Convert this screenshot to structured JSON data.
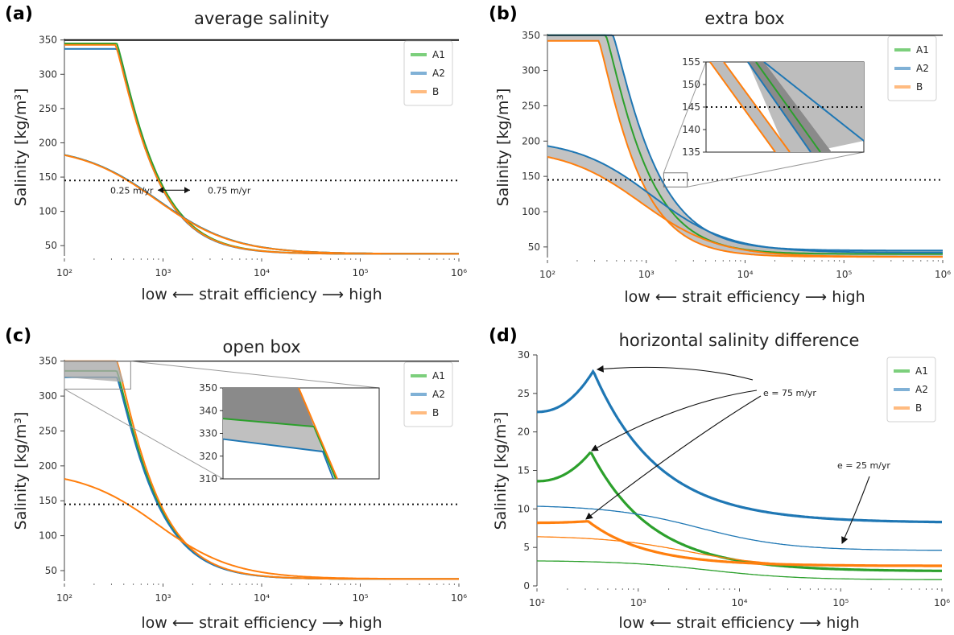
{
  "chart_data": [
    {
      "id": "a",
      "panel_label": "(a)",
      "type": "line",
      "title": "average salinity",
      "ylabel": "Salinity [kg/m³]",
      "xlabel": "low ⟵  strait efficiency  ⟶ high",
      "xscale": "log",
      "xlim": [
        100,
        1000000
      ],
      "ylim": [
        35,
        352
      ],
      "yticks": [
        50,
        100,
        150,
        200,
        250,
        300,
        350
      ],
      "xticks": [
        "10²",
        "10³",
        "10⁴",
        "10⁵",
        "10⁶"
      ],
      "hline_solid": 350,
      "hline_dotted": 145,
      "legend": {
        "placement": "top-right",
        "entries": [
          "A1",
          "A2",
          "B"
        ]
      },
      "annotations": [
        "0.25 m/yr",
        "0.75 m/yr"
      ],
      "series": [
        {
          "name": "A1",
          "color": "#2ca02c",
          "params": {
            "plateau": 345,
            "knee": 340,
            "p": 2.6
          }
        },
        {
          "name": "A2",
          "color": "#1f77b4",
          "params": {
            "plateau": 337,
            "knee": 340,
            "p": 2.65
          }
        },
        {
          "name": "B",
          "color": "#ff7f0e",
          "params": {
            "plateau": 343,
            "knee": 330,
            "p": 2.6
          }
        },
        {
          "name": "A1",
          "color": "#2ca02c",
          "params": {
            "start": 195,
            "mid": 1000,
            "p": 1.8
          }
        },
        {
          "name": "A2",
          "color": "#1f77b4",
          "params": {
            "start": 195,
            "mid": 1000,
            "p": 1.8
          }
        },
        {
          "name": "B",
          "color": "#ff7f0e",
          "params": {
            "start": 195,
            "mid": 980,
            "p": 1.8
          }
        }
      ]
    },
    {
      "id": "b",
      "panel_label": "(b)",
      "type": "line",
      "title": "extra box",
      "ylabel": "Salinity [kg/m³]",
      "xlabel": "low ⟵  strait efficiency  ⟶ high",
      "xscale": "log",
      "xlim": [
        100,
        1000000
      ],
      "ylim": [
        35,
        352
      ],
      "yticks": [
        50,
        100,
        150,
        200,
        250,
        300,
        350
      ],
      "xticks": [
        "10²",
        "10³",
        "10⁴",
        "10⁵",
        "10⁶"
      ],
      "hline_solid": 350,
      "hline_dotted": 145,
      "legend": {
        "placement": "top-right",
        "entries": [
          "A1",
          "A2",
          "B"
        ]
      },
      "inset": {
        "ylim": [
          135,
          155
        ],
        "yticks": [
          135,
          140,
          145,
          150,
          155
        ]
      },
      "series": [
        {
          "name": "A1",
          "color": "#2ca02c",
          "params": {
            "plateau": 350,
            "knee": 390,
            "p": 2.5,
            "floor": 40
          }
        },
        {
          "name": "A2",
          "color": "#1f77b4",
          "params": {
            "plateau": 350,
            "knee": 460,
            "p": 2.4,
            "floor": 45
          }
        },
        {
          "name": "B",
          "color": "#ff7f0e",
          "params": {
            "plateau": 342,
            "knee": 330,
            "p": 2.6,
            "floor": 36
          }
        },
        {
          "name": "A2",
          "color": "#1f77b4",
          "params": {
            "start": 203,
            "mid": 1300,
            "p": 1.8,
            "floor": 42
          }
        },
        {
          "name": "B",
          "color": "#ff7f0e",
          "params": {
            "start": 190,
            "mid": 1000,
            "p": 1.8,
            "floor": 36
          }
        }
      ]
    },
    {
      "id": "c",
      "panel_label": "(c)",
      "type": "line",
      "title": "open box",
      "ylabel": "Salinity [kg/m³]",
      "xlabel": "low ⟵  strait efficiency  ⟶ high",
      "xscale": "log",
      "xlim": [
        100,
        1000000
      ],
      "ylim": [
        35,
        352
      ],
      "yticks": [
        50,
        100,
        150,
        200,
        250,
        300,
        350
      ],
      "xticks": [
        "10²",
        "10³",
        "10⁴",
        "10⁵",
        "10⁶"
      ],
      "hline_solid": 350,
      "hline_dotted": 145,
      "legend": {
        "placement": "top-right",
        "entries": [
          "A1",
          "A2",
          "B"
        ]
      },
      "inset": {
        "ylim": [
          310,
          350
        ],
        "yticks": [
          310,
          320,
          330,
          340,
          350
        ]
      },
      "series": [
        {
          "name": "A1",
          "color": "#2ca02c",
          "params": {
            "plateau": 336,
            "knee": 340,
            "p": 2.6
          }
        },
        {
          "name": "A2",
          "color": "#1f77b4",
          "params": {
            "plateau": 327,
            "knee": 340,
            "p": 2.6
          }
        },
        {
          "name": "B",
          "color": "#ff7f0e",
          "params": {
            "plateau": 350,
            "knee": 340,
            "p": 2.6
          }
        },
        {
          "name": "B",
          "color": "#ff7f0e",
          "params": {
            "start": 194,
            "mid": 1000,
            "p": 1.8
          }
        }
      ]
    },
    {
      "id": "d",
      "panel_label": "(d)",
      "type": "line",
      "title": "horizontal salinity difference",
      "ylabel": "Salinity [kg/m³]",
      "xlabel": "low ⟵  strait efficiency  ⟶ high",
      "xscale": "log",
      "xlim": [
        100,
        1000000
      ],
      "ylim": [
        0,
        30
      ],
      "yticks": [
        0,
        5,
        10,
        15,
        20,
        25,
        30
      ],
      "xticks": [
        "10²",
        "10³",
        "10⁴",
        "10⁵",
        "10⁶"
      ],
      "legend": {
        "placement": "top-right",
        "entries": [
          "A1",
          "A2",
          "B"
        ]
      },
      "annotations": [
        "e = 75 m/yr",
        "e = 25 m/yr"
      ],
      "series": [
        {
          "name": "A2",
          "color": "#1f77b4",
          "width": "thick",
          "params": {
            "start": 22.6,
            "peak": 27.9,
            "peak_x": 360,
            "floor": 8.2,
            "mid": 3000,
            "p": 1.6
          }
        },
        {
          "name": "A1",
          "color": "#2ca02c",
          "width": "thick",
          "params": {
            "start": 13.6,
            "peak": 17.4,
            "peak_x": 340,
            "floor": 1.9,
            "mid": 2200,
            "p": 1.7
          }
        },
        {
          "name": "B",
          "color": "#ff7f0e",
          "width": "thick",
          "params": {
            "start": 8.2,
            "peak": 8.4,
            "peak_x": 320,
            "floor": 2.6,
            "mid": 2000,
            "p": 1.8
          }
        },
        {
          "name": "A2",
          "color": "#1f77b4",
          "width": "thin",
          "params": {
            "start": 10.5,
            "floor": 4.6,
            "mid": 4000,
            "p": 1.4
          }
        },
        {
          "name": "B",
          "color": "#ff7f0e",
          "width": "thin",
          "params": {
            "start": 6.5,
            "floor": 2.5,
            "mid": 3000,
            "p": 1.5
          }
        },
        {
          "name": "A1",
          "color": "#2ca02c",
          "width": "thin",
          "params": {
            "start": 3.3,
            "floor": 0.8,
            "mid": 5000,
            "p": 1.4
          }
        }
      ]
    }
  ]
}
